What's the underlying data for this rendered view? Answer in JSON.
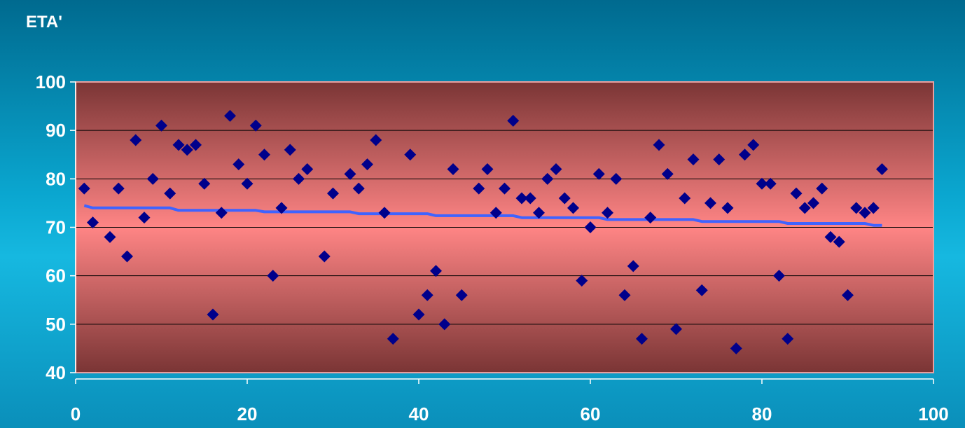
{
  "chart_data": {
    "type": "scatter",
    "title": "ETA'",
    "xlabel": "",
    "ylabel": "",
    "xlim": [
      0,
      100
    ],
    "ylim": [
      40,
      100
    ],
    "x_ticks": [
      0,
      20,
      40,
      60,
      80,
      100
    ],
    "y_ticks": [
      40,
      50,
      60,
      70,
      80,
      90,
      100
    ],
    "grid": "horizontal",
    "legend": "none",
    "colors": {
      "marker": "#00008b",
      "trend": "#3f63ff",
      "gridline": "#000000",
      "plot_border": "#e8a0a0",
      "plot_top": "#7a3535",
      "plot_mid": "#ff8585",
      "axis_text": "#ffffff"
    },
    "series": [
      {
        "type": "scatter",
        "marker": "diamond",
        "points": [
          [
            1,
            78
          ],
          [
            2,
            71
          ],
          [
            4,
            68
          ],
          [
            5,
            78
          ],
          [
            6,
            64
          ],
          [
            7,
            88
          ],
          [
            8,
            72
          ],
          [
            9,
            80
          ],
          [
            10,
            91
          ],
          [
            11,
            77
          ],
          [
            12,
            87
          ],
          [
            13,
            86
          ],
          [
            14,
            87
          ],
          [
            15,
            79
          ],
          [
            16,
            52
          ],
          [
            17,
            73
          ],
          [
            18,
            93
          ],
          [
            19,
            83
          ],
          [
            20,
            79
          ],
          [
            21,
            91
          ],
          [
            22,
            85
          ],
          [
            23,
            60
          ],
          [
            24,
            74
          ],
          [
            25,
            86
          ],
          [
            26,
            80
          ],
          [
            27,
            82
          ],
          [
            29,
            64
          ],
          [
            30,
            77
          ],
          [
            32,
            81
          ],
          [
            33,
            78
          ],
          [
            34,
            83
          ],
          [
            35,
            88
          ],
          [
            36,
            73
          ],
          [
            37,
            47
          ],
          [
            39,
            85
          ],
          [
            40,
            52
          ],
          [
            41,
            56
          ],
          [
            42,
            61
          ],
          [
            43,
            50
          ],
          [
            44,
            82
          ],
          [
            45,
            56
          ],
          [
            47,
            78
          ],
          [
            48,
            82
          ],
          [
            49,
            73
          ],
          [
            50,
            78
          ],
          [
            51,
            92
          ],
          [
            52,
            76
          ],
          [
            53,
            76
          ],
          [
            54,
            73
          ],
          [
            55,
            80
          ],
          [
            56,
            82
          ],
          [
            57,
            76
          ],
          [
            58,
            74
          ],
          [
            59,
            59
          ],
          [
            60,
            70
          ],
          [
            61,
            81
          ],
          [
            62,
            73
          ],
          [
            63,
            80
          ],
          [
            64,
            56
          ],
          [
            65,
            62
          ],
          [
            66,
            47
          ],
          [
            67,
            72
          ],
          [
            68,
            87
          ],
          [
            69,
            81
          ],
          [
            70,
            49
          ],
          [
            71,
            76
          ],
          [
            72,
            84
          ],
          [
            73,
            57
          ],
          [
            74,
            75
          ],
          [
            75,
            84
          ],
          [
            76,
            74
          ],
          [
            77,
            45
          ],
          [
            78,
            85
          ],
          [
            79,
            87
          ],
          [
            80,
            79
          ],
          [
            81,
            79
          ],
          [
            82,
            60
          ],
          [
            83,
            47
          ],
          [
            84,
            77
          ],
          [
            85,
            74
          ],
          [
            86,
            75
          ],
          [
            87,
            78
          ],
          [
            88,
            68
          ],
          [
            89,
            67
          ],
          [
            90,
            56
          ],
          [
            91,
            74
          ],
          [
            92,
            73
          ],
          [
            93,
            74
          ],
          [
            94,
            82
          ]
        ]
      },
      {
        "type": "line",
        "points": [
          [
            1,
            74.5
          ],
          [
            2,
            74.0
          ],
          [
            11,
            74.0
          ],
          [
            12,
            73.5
          ],
          [
            21,
            73.5
          ],
          [
            22,
            73.2
          ],
          [
            32,
            73.2
          ],
          [
            33,
            72.8
          ],
          [
            41,
            72.8
          ],
          [
            42,
            72.4
          ],
          [
            51,
            72.4
          ],
          [
            52,
            72.0
          ],
          [
            61,
            72.0
          ],
          [
            62,
            71.6
          ],
          [
            72,
            71.6
          ],
          [
            73,
            71.2
          ],
          [
            82,
            71.2
          ],
          [
            83,
            70.8
          ],
          [
            92,
            70.8
          ],
          [
            93,
            70.4
          ],
          [
            94,
            70.4
          ]
        ]
      }
    ]
  }
}
